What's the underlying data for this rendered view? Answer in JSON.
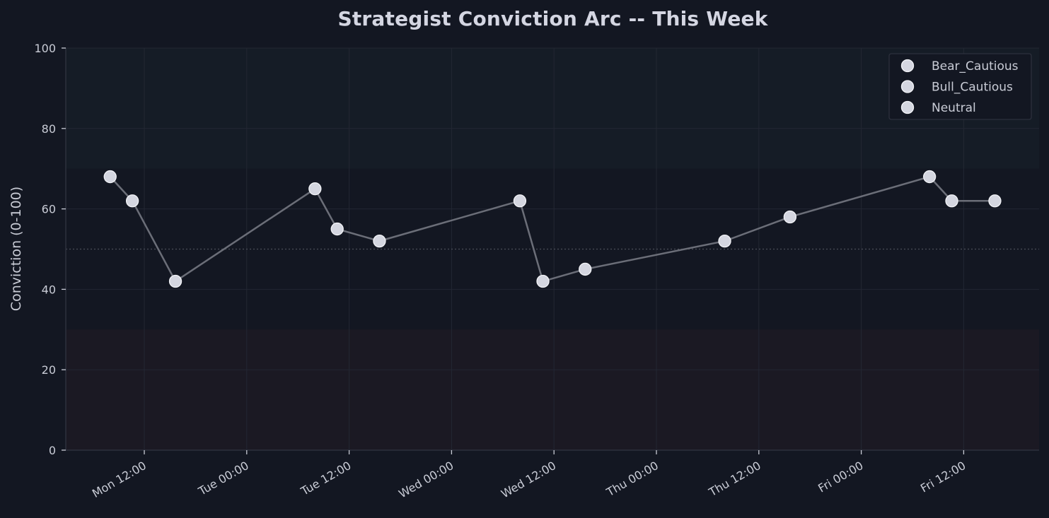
{
  "title": "Strategist Conviction Arc -- This Week",
  "colors": {
    "background": "#131722",
    "plot_bg": "#131722",
    "bull_zone": "#151c26",
    "bear_zone": "#1b1923",
    "grid": "#232733",
    "spine": "#2c303c",
    "line": "#6b6e78",
    "marker_fill": "#d4d6e0",
    "marker_edge": "#f2f3f7",
    "text": "#c9ccd6",
    "midline": "#4a4d58"
  },
  "chart_data": {
    "type": "line",
    "title": "Strategist Conviction Arc -- This Week",
    "xlabel": "",
    "ylabel": "Conviction (0-100)",
    "ylim": [
      0,
      100
    ],
    "yticks": [
      0,
      20,
      40,
      60,
      80,
      100
    ],
    "xticks": [
      "Mon 12:00",
      "Tue 00:00",
      "Tue 12:00",
      "Wed 00:00",
      "Wed 12:00",
      "Thu 00:00",
      "Thu 12:00",
      "Fri 00:00",
      "Fri 12:00"
    ],
    "grid": true,
    "reference_line": {
      "y": 50,
      "style": "dotted"
    },
    "shaded_bands": [
      {
        "from": 70,
        "to": 100,
        "tone": "bull"
      },
      {
        "from": 0,
        "to": 30,
        "tone": "bear"
      }
    ],
    "legend": {
      "position": "upper right",
      "entries": [
        "Bear_Cautious",
        "Bull_Cautious",
        "Neutral"
      ]
    },
    "x": [
      "Mon 08:00",
      "Mon 10:30",
      "Mon 15:40",
      "Tue 08:00",
      "Tue 10:30",
      "Tue 15:30",
      "Wed 08:00",
      "Wed 10:40",
      "Wed 15:40",
      "Thu 08:00",
      "Thu 15:40",
      "Fri 08:00",
      "Fri 10:30",
      "Fri 15:40"
    ],
    "x_hours_from_mon_12": [
      -4.0,
      -1.4,
      3.65,
      20.0,
      22.6,
      27.55,
      44.0,
      46.7,
      51.65,
      68.0,
      75.65,
      92.0,
      94.6,
      99.65
    ],
    "values": [
      68,
      62,
      42,
      65,
      55,
      52,
      62,
      42,
      45,
      52,
      58,
      68,
      62,
      62
    ]
  }
}
